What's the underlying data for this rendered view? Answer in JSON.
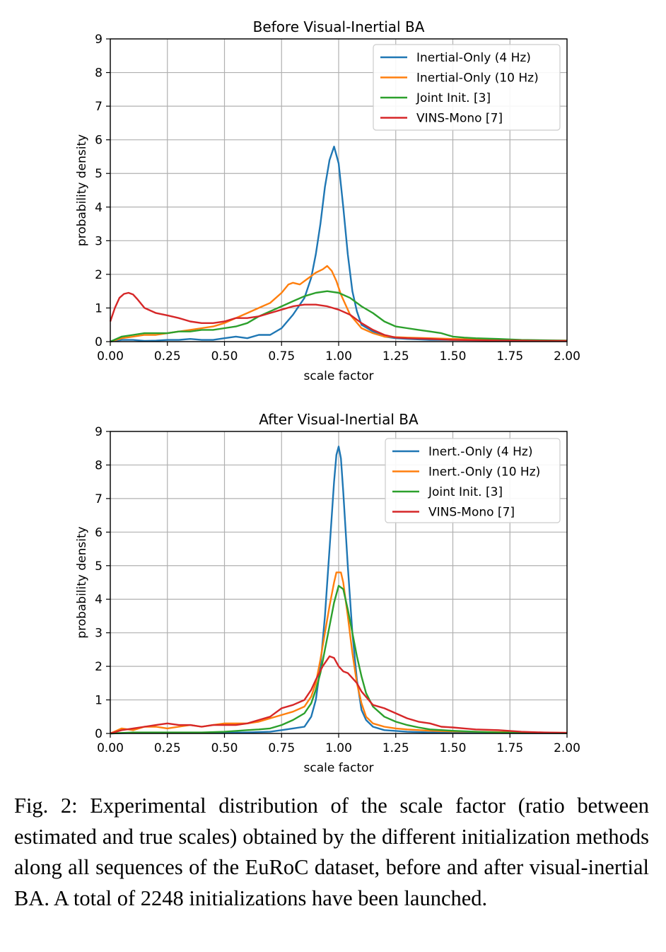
{
  "chart_data": [
    {
      "type": "line",
      "title": "Before Visual-Inertial BA",
      "xlabel": "scale factor",
      "ylabel": "probability density",
      "xlim": [
        0,
        2
      ],
      "ylim": [
        0,
        9
      ],
      "xticks": [
        "0.00",
        "0.25",
        "0.50",
        "0.75",
        "1.00",
        "1.25",
        "1.50",
        "1.75",
        "2.00"
      ],
      "yticks": [
        "0",
        "1",
        "2",
        "3",
        "4",
        "5",
        "6",
        "7",
        "8",
        "9"
      ],
      "grid": true,
      "legend_position": "top-right",
      "series": [
        {
          "name": "Inertial-Only (4 Hz)",
          "color": "#1f77b4",
          "x": [
            0,
            0.05,
            0.1,
            0.15,
            0.2,
            0.25,
            0.3,
            0.35,
            0.4,
            0.45,
            0.5,
            0.55,
            0.6,
            0.65,
            0.7,
            0.75,
            0.8,
            0.85,
            0.88,
            0.9,
            0.92,
            0.94,
            0.96,
            0.98,
            1.0,
            1.02,
            1.04,
            1.06,
            1.08,
            1.1,
            1.15,
            1.2,
            1.25,
            1.3,
            1.4,
            1.5,
            1.6,
            1.7,
            1.8,
            1.9,
            2.0
          ],
          "y": [
            0.0,
            0.05,
            0.05,
            0.02,
            0.03,
            0.05,
            0.05,
            0.08,
            0.05,
            0.05,
            0.1,
            0.15,
            0.1,
            0.2,
            0.2,
            0.4,
            0.8,
            1.3,
            1.9,
            2.6,
            3.5,
            4.6,
            5.4,
            5.8,
            5.3,
            4.0,
            2.6,
            1.5,
            0.9,
            0.5,
            0.3,
            0.15,
            0.1,
            0.08,
            0.05,
            0.05,
            0.05,
            0.03,
            0.03,
            0.02,
            0.02
          ]
        },
        {
          "name": "Inertial-Only (10 Hz)",
          "color": "#ff7f0e",
          "x": [
            0,
            0.05,
            0.1,
            0.15,
            0.2,
            0.25,
            0.3,
            0.35,
            0.4,
            0.45,
            0.5,
            0.55,
            0.6,
            0.65,
            0.7,
            0.75,
            0.78,
            0.8,
            0.83,
            0.86,
            0.88,
            0.9,
            0.93,
            0.95,
            0.97,
            0.99,
            1.01,
            1.03,
            1.05,
            1.1,
            1.15,
            1.2,
            1.3,
            1.4,
            1.5,
            1.6,
            1.7,
            1.8,
            1.9,
            2.0
          ],
          "y": [
            0.0,
            0.1,
            0.15,
            0.2,
            0.2,
            0.25,
            0.3,
            0.35,
            0.4,
            0.45,
            0.55,
            0.7,
            0.85,
            1.0,
            1.15,
            1.45,
            1.7,
            1.75,
            1.7,
            1.85,
            1.95,
            2.05,
            2.15,
            2.25,
            2.1,
            1.8,
            1.4,
            1.1,
            0.8,
            0.4,
            0.25,
            0.15,
            0.12,
            0.1,
            0.08,
            0.06,
            0.05,
            0.04,
            0.03,
            0.03
          ]
        },
        {
          "name": "Joint Init. [3]",
          "color": "#2ca02c",
          "x": [
            0,
            0.05,
            0.1,
            0.15,
            0.2,
            0.25,
            0.3,
            0.35,
            0.4,
            0.45,
            0.5,
            0.55,
            0.6,
            0.65,
            0.7,
            0.75,
            0.8,
            0.85,
            0.9,
            0.95,
            1.0,
            1.05,
            1.1,
            1.15,
            1.2,
            1.25,
            1.3,
            1.35,
            1.4,
            1.45,
            1.5,
            1.55,
            1.6,
            1.7,
            1.8,
            1.9,
            2.0
          ],
          "y": [
            0.0,
            0.15,
            0.2,
            0.25,
            0.25,
            0.25,
            0.3,
            0.3,
            0.35,
            0.35,
            0.4,
            0.45,
            0.55,
            0.75,
            0.9,
            1.05,
            1.2,
            1.35,
            1.45,
            1.5,
            1.45,
            1.3,
            1.05,
            0.85,
            0.6,
            0.45,
            0.4,
            0.35,
            0.3,
            0.25,
            0.15,
            0.12,
            0.1,
            0.08,
            0.05,
            0.04,
            0.03
          ]
        },
        {
          "name": "VINS-Mono [7]",
          "color": "#d62728",
          "x": [
            0,
            0.02,
            0.04,
            0.06,
            0.08,
            0.1,
            0.12,
            0.15,
            0.2,
            0.25,
            0.3,
            0.35,
            0.4,
            0.45,
            0.5,
            0.55,
            0.6,
            0.65,
            0.7,
            0.75,
            0.8,
            0.85,
            0.9,
            0.95,
            1.0,
            1.05,
            1.1,
            1.15,
            1.2,
            1.25,
            1.3,
            1.4,
            1.5,
            1.6,
            1.7,
            1.8,
            1.9,
            2.0
          ],
          "y": [
            0.6,
            1.0,
            1.3,
            1.42,
            1.45,
            1.4,
            1.25,
            1.0,
            0.85,
            0.78,
            0.7,
            0.6,
            0.55,
            0.55,
            0.6,
            0.7,
            0.7,
            0.75,
            0.85,
            0.95,
            1.05,
            1.1,
            1.1,
            1.05,
            0.95,
            0.8,
            0.55,
            0.35,
            0.2,
            0.12,
            0.1,
            0.08,
            0.05,
            0.04,
            0.03,
            0.03,
            0.02,
            0.02
          ]
        }
      ]
    },
    {
      "type": "line",
      "title": "After Visual-Inertial BA",
      "xlabel": "scale factor",
      "ylabel": "probability density",
      "xlim": [
        0,
        2
      ],
      "ylim": [
        0,
        9
      ],
      "xticks": [
        "0.00",
        "0.25",
        "0.50",
        "0.75",
        "1.00",
        "1.25",
        "1.50",
        "1.75",
        "2.00"
      ],
      "yticks": [
        "0",
        "1",
        "2",
        "3",
        "4",
        "5",
        "6",
        "7",
        "8",
        "9"
      ],
      "grid": true,
      "legend_position": "top-right",
      "series": [
        {
          "name": "Inert.-Only (4 Hz)",
          "color": "#1f77b4",
          "x": [
            0,
            0.1,
            0.2,
            0.3,
            0.4,
            0.5,
            0.6,
            0.7,
            0.75,
            0.8,
            0.85,
            0.88,
            0.9,
            0.92,
            0.94,
            0.96,
            0.98,
            0.99,
            1.0,
            1.01,
            1.02,
            1.04,
            1.06,
            1.08,
            1.1,
            1.12,
            1.15,
            1.2,
            1.3,
            1.4,
            1.5,
            1.6,
            1.8,
            2.0
          ],
          "y": [
            0.0,
            0.02,
            0.02,
            0.02,
            0.02,
            0.02,
            0.03,
            0.05,
            0.1,
            0.15,
            0.2,
            0.5,
            1.0,
            2.0,
            3.5,
            5.5,
            7.5,
            8.3,
            8.55,
            8.2,
            7.2,
            5.0,
            3.0,
            1.6,
            0.7,
            0.4,
            0.2,
            0.1,
            0.05,
            0.03,
            0.02,
            0.02,
            0.01,
            0.01
          ]
        },
        {
          "name": "Inert.-Only (10 Hz)",
          "color": "#ff7f0e",
          "x": [
            0,
            0.05,
            0.1,
            0.15,
            0.2,
            0.25,
            0.3,
            0.35,
            0.4,
            0.45,
            0.5,
            0.55,
            0.6,
            0.65,
            0.7,
            0.75,
            0.8,
            0.85,
            0.88,
            0.9,
            0.92,
            0.94,
            0.96,
            0.98,
            0.99,
            1.0,
            1.01,
            1.02,
            1.04,
            1.06,
            1.08,
            1.1,
            1.12,
            1.15,
            1.2,
            1.25,
            1.3,
            1.4,
            1.5,
            1.6,
            1.8,
            2.0
          ],
          "y": [
            0.0,
            0.15,
            0.1,
            0.2,
            0.2,
            0.15,
            0.2,
            0.25,
            0.2,
            0.25,
            0.3,
            0.3,
            0.3,
            0.35,
            0.45,
            0.55,
            0.65,
            0.8,
            1.1,
            1.5,
            2.2,
            3.0,
            3.8,
            4.5,
            4.8,
            4.8,
            4.8,
            4.5,
            3.5,
            2.4,
            1.5,
            0.9,
            0.5,
            0.3,
            0.2,
            0.15,
            0.12,
            0.08,
            0.06,
            0.05,
            0.03,
            0.02
          ]
        },
        {
          "name": "Joint Init. [3]",
          "color": "#2ca02c",
          "x": [
            0,
            0.1,
            0.2,
            0.3,
            0.4,
            0.5,
            0.6,
            0.65,
            0.7,
            0.75,
            0.8,
            0.85,
            0.88,
            0.9,
            0.92,
            0.94,
            0.96,
            0.98,
            1.0,
            1.02,
            1.04,
            1.06,
            1.08,
            1.1,
            1.12,
            1.15,
            1.2,
            1.25,
            1.3,
            1.35,
            1.4,
            1.5,
            1.6,
            1.7,
            1.8,
            2.0
          ],
          "y": [
            0.0,
            0.03,
            0.03,
            0.03,
            0.03,
            0.05,
            0.1,
            0.12,
            0.15,
            0.25,
            0.4,
            0.6,
            0.9,
            1.3,
            1.8,
            2.5,
            3.2,
            3.9,
            4.4,
            4.3,
            3.7,
            3.0,
            2.3,
            1.7,
            1.2,
            0.8,
            0.5,
            0.35,
            0.25,
            0.18,
            0.12,
            0.08,
            0.05,
            0.03,
            0.02,
            0.01
          ]
        },
        {
          "name": "VINS-Mono [7]",
          "color": "#d62728",
          "x": [
            0,
            0.05,
            0.1,
            0.15,
            0.2,
            0.25,
            0.3,
            0.35,
            0.4,
            0.45,
            0.5,
            0.55,
            0.6,
            0.65,
            0.7,
            0.75,
            0.8,
            0.85,
            0.88,
            0.9,
            0.93,
            0.96,
            0.98,
            1.0,
            1.02,
            1.04,
            1.06,
            1.08,
            1.1,
            1.15,
            1.2,
            1.25,
            1.3,
            1.35,
            1.4,
            1.45,
            1.5,
            1.55,
            1.6,
            1.7,
            1.8,
            1.9,
            2.0
          ],
          "y": [
            0.0,
            0.1,
            0.15,
            0.2,
            0.25,
            0.3,
            0.25,
            0.25,
            0.2,
            0.25,
            0.25,
            0.25,
            0.3,
            0.4,
            0.5,
            0.75,
            0.85,
            1.0,
            1.3,
            1.6,
            2.0,
            2.3,
            2.25,
            2.0,
            1.85,
            1.8,
            1.65,
            1.5,
            1.25,
            0.85,
            0.75,
            0.6,
            0.45,
            0.35,
            0.3,
            0.2,
            0.18,
            0.15,
            0.12,
            0.1,
            0.05,
            0.03,
            0.02
          ]
        }
      ]
    }
  ],
  "caption": "Fig. 2: Experimental distribution of the scale factor (ratio between estimated and true scales) obtained by the different initialization methods along all sequences of the EuRoC dataset, before and after visual-inertial BA. A total of 2248 initializations have been launched."
}
